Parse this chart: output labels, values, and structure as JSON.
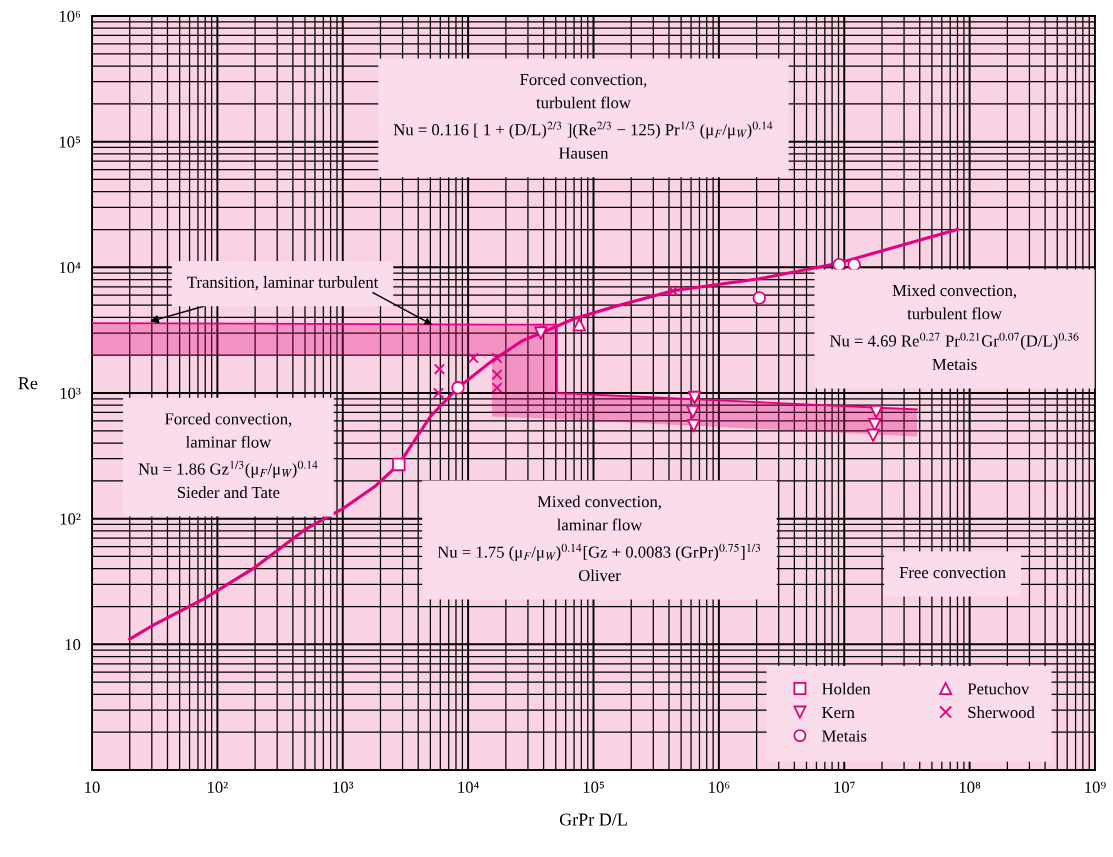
{
  "chart_data": {
    "type": "line",
    "xlabel": "GrPr D/L",
    "ylabel": "Re",
    "log": "xy",
    "grid": true,
    "legend": "bottom right",
    "xlim": [
      10,
      1000000000
    ],
    "ylim": [
      1,
      1000000
    ],
    "xticks": [
      {
        "value": 10,
        "label": "10"
      },
      {
        "value": 100,
        "label": "10²"
      },
      {
        "value": 1000,
        "label": "10³"
      },
      {
        "value": 10000,
        "label": "10⁴"
      },
      {
        "value": 100000,
        "label": "10⁵"
      },
      {
        "value": 1000000,
        "label": "10⁶"
      },
      {
        "value": 10000000,
        "label": "10⁷"
      },
      {
        "value": 100000000,
        "label": "10⁸"
      },
      {
        "value": 1000000000,
        "label": "10⁹"
      }
    ],
    "yticks": [
      {
        "value": 10,
        "label": "10"
      },
      {
        "value": 100,
        "label": "10²"
      },
      {
        "value": 1000,
        "label": "10³"
      },
      {
        "value": 10000,
        "label": "10⁴"
      },
      {
        "value": 100000,
        "label": "10⁵"
      },
      {
        "value": 1000000,
        "label": "10⁶"
      }
    ],
    "series": [
      {
        "type": "line",
        "color": "#e6007e",
        "x": [
          10,
          15500,
          15500,
          51000,
          51000,
          38000000
        ],
        "values": [
          3600,
          3500,
          3500,
          3500,
          1000,
          740
        ],
        "upper": [
          3600,
          3500,
          3500,
          3500,
          1000,
          740
        ],
        "lower": [
          2000,
          2000,
          650,
          620,
          620,
          450
        ]
      },
      {
        "color": "#e6007e",
        "marker": "none",
        "line_style": "solid",
        "x": [
          20,
          30,
          78,
          200,
          510,
          1000,
          1800,
          2800,
          5000,
          8300,
          15500,
          27000,
          38000,
          70000,
          150000,
          430000,
          2100000,
          9000000,
          80000000
        ],
        "values": [
          11,
          14,
          23,
          41,
          83,
          120,
          180,
          270,
          650,
          1100,
          1800,
          2600,
          3000,
          3900,
          4900,
          6500,
          8100,
          10800,
          20000
        ]
      },
      {
        "type": "scatter",
        "name": "Holden",
        "color": "#e6007e",
        "marker": "square",
        "x": [
          2800
        ],
        "values": [
          270
        ]
      },
      {
        "type": "scatter",
        "name": "Kern",
        "color": "#e6007e",
        "marker": "triangle_down",
        "x": [
          38000,
          640000,
          620000,
          630000,
          18000000,
          17500000,
          17000000
        ],
        "values": [
          3000,
          920,
          710,
          550,
          710,
          560,
          460
        ]
      },
      {
        "type": "scatter",
        "name": "Metais",
        "color": "#e6007e",
        "marker": "circle",
        "x": [
          8300,
          2100000,
          9100000,
          12000000
        ],
        "values": [
          1100,
          5700,
          10500,
          10500
        ]
      },
      {
        "type": "scatter",
        "name": "Petuchov",
        "color": "#e6007e",
        "marker": "triangle",
        "x": [
          77000
        ],
        "values": [
          3500
        ]
      },
      {
        "type": "scatter",
        "name": "Sherwood",
        "color": "#e6007e",
        "marker": "cross",
        "x": [
          5900,
          5800,
          11000,
          17000,
          17000,
          17000,
          430000
        ],
        "values": [
          1550,
          1000,
          1900,
          1900,
          1400,
          1100,
          6500
        ]
      }
    ],
    "annotations": [
      "Forced convection,\nturbulent flow\nNu = 0.116 [ 1 + (D/L)$^{2/3}$ ](Re$^{2/3}$ − 125) Pr$^{1/3}$ (μ$_{F}$/μ$_{W}$)$^{0.14}$\nHausen",
      {
        "text": "Transition, laminar turbulent",
        "x": 29,
        "y": 3700
      },
      "Mixed convection,\nturbulent flow\nNu = 4.69 Re$^{0.27}$ Pr$^{0.21}$Gr$^{0.07}$(D/L)$^{0.36}$\nMetais",
      "Forced convection,\nlaminar flow\nNu = 1.86 Gz$^{1/3}$(μ$_{F}$/μ$_{W}$)$^{0.14}$\nSieder and Tate",
      "Mixed convection,\nlaminar flow\nNu = 1.75 (μ$_{F}$/μ$_{W}$)$^{0.14}$[Gz + 0.0083 (GrPr)$^{0.75}$]$^{1/3}$\nOliver",
      "Free convection"
    ]
  }
}
